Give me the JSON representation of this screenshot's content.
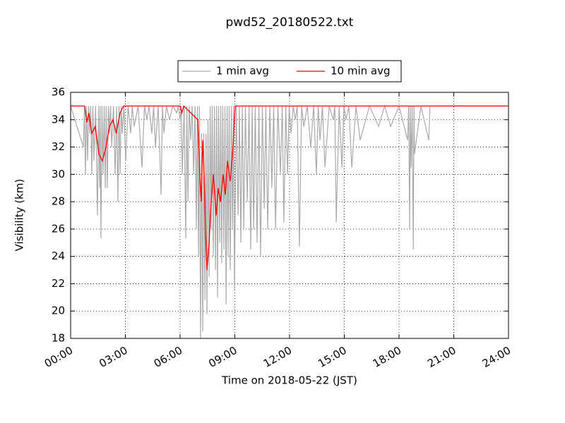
{
  "chart_data": {
    "type": "line",
    "title": "pwd52_20180522.txt",
    "x_label": "Time on 2018-05-22 (JST)",
    "y_label": "Visibility (km)",
    "xlim": [
      0,
      24
    ],
    "xticks": [
      {
        "value": 0,
        "label": "00:00"
      },
      {
        "value": 3,
        "label": "03:00"
      },
      {
        "value": 6,
        "label": "06:00"
      },
      {
        "value": 9,
        "label": "09:00"
      },
      {
        "value": 12,
        "label": "12:00"
      },
      {
        "value": 15,
        "label": "15:00"
      },
      {
        "value": 18,
        "label": "18:00"
      },
      {
        "value": 21,
        "label": "21:00"
      },
      {
        "value": 24,
        "label": "24:00"
      }
    ],
    "ylim": [
      18,
      36
    ],
    "yticks": [
      18,
      20,
      22,
      24,
      26,
      28,
      30,
      32,
      34,
      36
    ],
    "grid": true,
    "legend": "top",
    "series": [
      {
        "name": "1 min avg",
        "color": "#aaaaaa",
        "x": [
          0,
          0.7,
          0.76,
          0.81,
          0.87,
          0.93,
          0.99,
          1.05,
          1.1,
          1.16,
          1.22,
          1.28,
          1.37,
          1.47,
          1.53,
          1.59,
          1.62,
          1.66,
          1.72,
          1.78,
          1.84,
          1.9,
          1.95,
          2.01,
          2.07,
          2.13,
          2.19,
          2.25,
          2.35,
          2.44,
          2.52,
          2.59,
          2.65,
          2.71,
          2.77,
          2.83,
          2.92,
          3.02,
          3.15,
          3.29,
          3.38,
          3.48,
          3.7,
          3.91,
          4.05,
          4.18,
          4.3,
          4.45,
          4.55,
          4.65,
          4.8,
          4.96,
          5.03,
          5.11,
          5.25,
          5.42,
          5.6,
          5.81,
          5.9,
          6.0,
          6.06,
          6.12,
          6.22,
          6.31,
          6.37,
          6.43,
          6.5,
          6.58,
          6.66,
          6.74,
          6.82,
          6.89,
          6.95,
          7.01,
          7.06,
          7.12,
          7.18,
          7.24,
          7.3,
          7.36,
          7.42,
          7.47,
          7.53,
          7.59,
          7.65,
          7.7,
          7.76,
          7.82,
          7.88,
          7.94,
          8.0,
          8.05,
          8.11,
          8.17,
          8.23,
          8.28,
          8.34,
          8.4,
          8.46,
          8.52,
          8.58,
          8.63,
          8.69,
          8.75,
          8.81,
          8.87,
          8.93,
          8.98,
          9.08,
          9.18,
          9.25,
          9.33,
          9.41,
          9.49,
          9.58,
          9.68,
          9.78,
          9.87,
          9.95,
          10.03,
          10.12,
          10.22,
          10.32,
          10.41,
          10.51,
          10.61,
          10.7,
          10.8,
          10.92,
          11.03,
          11.13,
          11.23,
          11.36,
          11.5,
          11.6,
          11.69,
          11.79,
          11.89,
          11.98,
          12.08,
          12.2,
          12.31,
          12.42,
          12.54,
          12.66,
          12.78,
          12.97,
          13.16,
          13.32,
          13.47,
          13.57,
          13.67,
          13.8,
          13.94,
          14.17,
          14.4,
          14.48,
          14.56,
          14.72,
          14.87,
          14.98,
          15.1,
          15.25,
          15.41,
          15.64,
          15.87,
          16.38,
          16.88,
          17.21,
          17.54,
          18.0,
          18.47,
          18.53,
          18.58,
          18.62,
          18.66,
          18.72,
          18.78,
          18.82,
          18.85,
          19.2,
          19.63,
          19.7,
          24
        ],
        "values": [
          35,
          32,
          35,
          30,
          35,
          31,
          35,
          33,
          35,
          30,
          35,
          31,
          35,
          27,
          35,
          29,
          35,
          25.3,
          35,
          30,
          35,
          29,
          35,
          29,
          35,
          33,
          35,
          32,
          35,
          30,
          35,
          28,
          35,
          30,
          35,
          33,
          35,
          31,
          35,
          33,
          35,
          33.5,
          35,
          30.5,
          35,
          34,
          35,
          33,
          35,
          32,
          35,
          28.5,
          35,
          33,
          35,
          34,
          35,
          34.5,
          35,
          34,
          35,
          30,
          35,
          25.3,
          35,
          28,
          35,
          32.5,
          35,
          30,
          35,
          26,
          35,
          24,
          35,
          18,
          33,
          18.5,
          33,
          20.8,
          33,
          19.8,
          34,
          22.5,
          35,
          26,
          35,
          24,
          35,
          23,
          35,
          21,
          35,
          25,
          35,
          23.5,
          35,
          24.5,
          35,
          20.5,
          35,
          24,
          35,
          23,
          35,
          26,
          35,
          21.5,
          35,
          27,
          35,
          25,
          35,
          26,
          35,
          28,
          35,
          24.5,
          35,
          26,
          35,
          25,
          35,
          24,
          35,
          27.5,
          35,
          26,
          35,
          29,
          35,
          26,
          35,
          30,
          35,
          26.5,
          35,
          30,
          35,
          33,
          35,
          34,
          35,
          24.7,
          35,
          33.5,
          35,
          32,
          35,
          30,
          35,
          32.5,
          35,
          30.5,
          35,
          34,
          35,
          26.5,
          35,
          30.5,
          35,
          34,
          35,
          30.5,
          35,
          32.5,
          35,
          33.5,
          35,
          33.5,
          35,
          32.5,
          35,
          26,
          35,
          30.5,
          35,
          24.5,
          35,
          31.5,
          35,
          32.5,
          35,
          35
        ]
      },
      {
        "name": "10 min avg",
        "color": "#ff0000",
        "x": [
          0,
          0.77,
          0.89,
          1.0,
          1.16,
          1.35,
          1.55,
          1.74,
          1.94,
          2.13,
          2.32,
          2.5,
          2.71,
          2.9,
          6.0,
          6.1,
          6.2,
          6.97,
          7.08,
          7.16,
          7.24,
          7.32,
          7.39,
          7.47,
          7.59,
          7.7,
          7.82,
          7.98,
          8.09,
          8.21,
          8.36,
          8.48,
          8.59,
          8.75,
          8.9,
          9.02,
          24
        ],
        "values": [
          35,
          35,
          33.8,
          34.5,
          33,
          33.5,
          31.5,
          31,
          32,
          33.5,
          34,
          33,
          34.5,
          35,
          35,
          34.5,
          35,
          34,
          30,
          28,
          32.5,
          30,
          26,
          23,
          25,
          28,
          30,
          27,
          29,
          28,
          30,
          28.5,
          31,
          29.5,
          32,
          35,
          35
        ]
      }
    ]
  }
}
